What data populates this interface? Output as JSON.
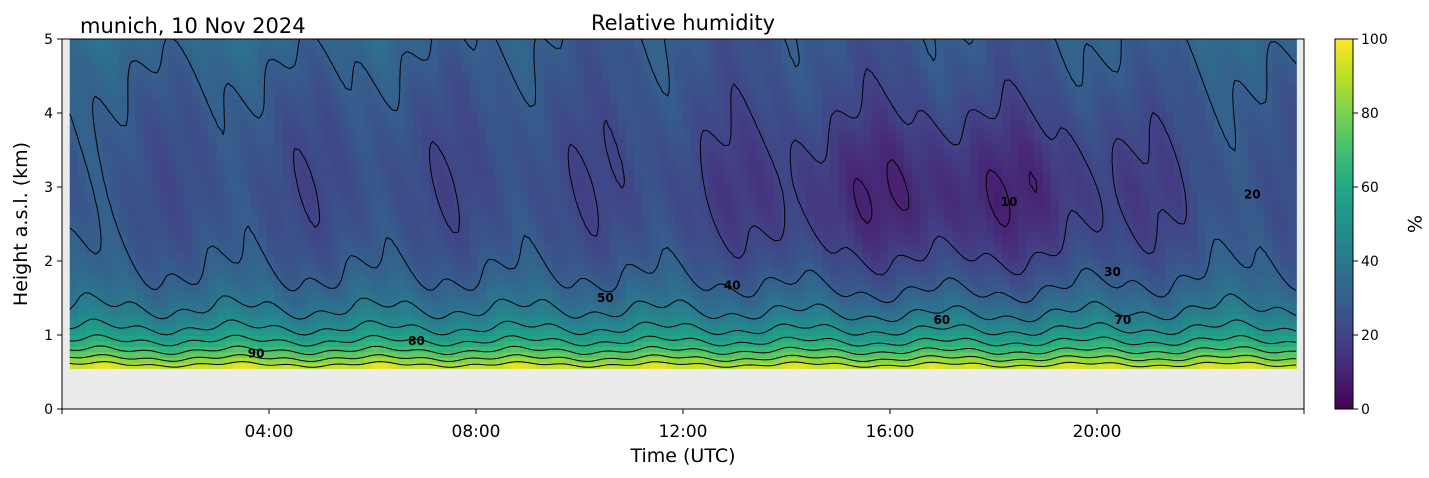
{
  "chart_data": {
    "type": "heatmap",
    "title": "Relative humidity",
    "site_label": "munich, 10 Nov 2024",
    "xlabel": "Time (UTC)",
    "ylabel": "Height a.s.l. (km)",
    "x_ticks": [
      "04:00",
      "08:00",
      "12:00",
      "16:00",
      "20:00"
    ],
    "x_tick_hours": [
      4,
      8,
      12,
      16,
      20
    ],
    "xlim_hours": [
      0,
      24
    ],
    "y_ticks": [
      "0",
      "1",
      "2",
      "3",
      "4",
      "5"
    ],
    "ylim_km": [
      0,
      5
    ],
    "data_bottom_km": 0.55,
    "data_time_range_hours": [
      0.15,
      23.85
    ],
    "colorbar": {
      "label": "%",
      "ticks": [
        "0",
        "20",
        "40",
        "60",
        "80",
        "100"
      ],
      "range": [
        0,
        100
      ],
      "colormap": "viridis"
    },
    "contour_levels": [
      10,
      20,
      30,
      40,
      50,
      60,
      70,
      80,
      90
    ],
    "contour_labels": [
      {
        "text": "90",
        "time_h": 3.75,
        "height_km": 0.75
      },
      {
        "text": "80",
        "time_h": 6.85,
        "height_km": 0.92
      },
      {
        "text": "50",
        "time_h": 10.5,
        "height_km": 1.5
      },
      {
        "text": "40",
        "time_h": 12.95,
        "height_km": 1.67
      },
      {
        "text": "60",
        "time_h": 17.0,
        "height_km": 1.2
      },
      {
        "text": "70",
        "time_h": 20.5,
        "height_km": 1.2
      },
      {
        "text": "30",
        "time_h": 20.3,
        "height_km": 1.85
      },
      {
        "text": "10",
        "time_h": 18.3,
        "height_km": 2.8
      },
      {
        "text": "20",
        "time_h": 23.0,
        "height_km": 2.9
      }
    ],
    "missing_color": "#ebebeb"
  }
}
